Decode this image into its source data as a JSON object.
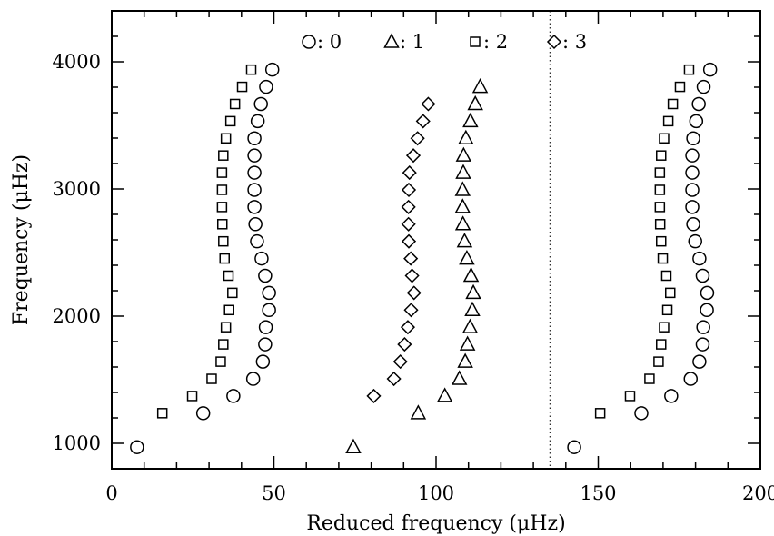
{
  "chart_data": {
    "type": "scatter",
    "title": "",
    "xlabel": "Reduced frequency (μHz)",
    "ylabel": "Frequency (μHz)",
    "xlim": [
      0,
      200
    ],
    "ylim": [
      800,
      4400
    ],
    "xticks": [
      0,
      50,
      100,
      150,
      200
    ],
    "yticks": [
      1000,
      2000,
      3000,
      4000
    ],
    "x_tick_labels": [
      "0",
      "50",
      "100",
      "150",
      "200"
    ],
    "y_tick_labels": [
      "1000",
      "2000",
      "3000",
      "4000"
    ],
    "grid": false,
    "legend_position": "top",
    "reference_line": {
      "x": 135.1,
      "style": "dotted"
    },
    "series": [
      {
        "name": ": 0",
        "marker": "circle",
        "points": [
          {
            "x": 7.8,
            "y": 970
          },
          {
            "x": 28.2,
            "y": 1237
          },
          {
            "x": 37.5,
            "y": 1372
          },
          {
            "x": 43.6,
            "y": 1507
          },
          {
            "x": 46.6,
            "y": 1642
          },
          {
            "x": 47.3,
            "y": 1778
          },
          {
            "x": 47.5,
            "y": 1913
          },
          {
            "x": 48.5,
            "y": 2048
          },
          {
            "x": 48.5,
            "y": 2183
          },
          {
            "x": 47.3,
            "y": 2318
          },
          {
            "x": 46.2,
            "y": 2453
          },
          {
            "x": 44.8,
            "y": 2588
          },
          {
            "x": 44.3,
            "y": 2723
          },
          {
            "x": 44.0,
            "y": 2858
          },
          {
            "x": 44.0,
            "y": 2993
          },
          {
            "x": 44.0,
            "y": 3128
          },
          {
            "x": 44.0,
            "y": 3263
          },
          {
            "x": 44.0,
            "y": 3398
          },
          {
            "x": 45.0,
            "y": 3533
          },
          {
            "x": 46.0,
            "y": 3668
          },
          {
            "x": 47.6,
            "y": 3803
          },
          {
            "x": 49.5,
            "y": 3938
          }
        ]
      },
      {
        "name": ": 1",
        "marker": "triangle",
        "points": [
          {
            "x": 74.5,
            "y": 970
          },
          {
            "x": 94.5,
            "y": 1237
          },
          {
            "x": 102.7,
            "y": 1372
          },
          {
            "x": 107.2,
            "y": 1507
          },
          {
            "x": 109.0,
            "y": 1642
          },
          {
            "x": 109.7,
            "y": 1778
          },
          {
            "x": 110.5,
            "y": 1913
          },
          {
            "x": 111.2,
            "y": 2048
          },
          {
            "x": 111.5,
            "y": 2183
          },
          {
            "x": 110.8,
            "y": 2318
          },
          {
            "x": 109.5,
            "y": 2453
          },
          {
            "x": 108.8,
            "y": 2588
          },
          {
            "x": 108.3,
            "y": 2723
          },
          {
            "x": 108.2,
            "y": 2858
          },
          {
            "x": 108.2,
            "y": 2993
          },
          {
            "x": 108.4,
            "y": 3128
          },
          {
            "x": 108.5,
            "y": 3263
          },
          {
            "x": 109.2,
            "y": 3398
          },
          {
            "x": 110.6,
            "y": 3533
          },
          {
            "x": 112.1,
            "y": 3668
          },
          {
            "x": 113.6,
            "y": 3803
          }
        ]
      },
      {
        "name": ": 2",
        "marker": "square",
        "points": [
          {
            "x": 15.6,
            "y": 1237
          },
          {
            "x": 24.8,
            "y": 1372
          },
          {
            "x": 30.8,
            "y": 1507
          },
          {
            "x": 33.6,
            "y": 1642
          },
          {
            "x": 34.4,
            "y": 1778
          },
          {
            "x": 35.2,
            "y": 1913
          },
          {
            "x": 36.2,
            "y": 2048
          },
          {
            "x": 37.2,
            "y": 2183
          },
          {
            "x": 36.0,
            "y": 2318
          },
          {
            "x": 34.8,
            "y": 2453
          },
          {
            "x": 34.4,
            "y": 2588
          },
          {
            "x": 34.1,
            "y": 2723
          },
          {
            "x": 34.0,
            "y": 2858
          },
          {
            "x": 34.0,
            "y": 2993
          },
          {
            "x": 34.0,
            "y": 3128
          },
          {
            "x": 34.4,
            "y": 3263
          },
          {
            "x": 35.2,
            "y": 3398
          },
          {
            "x": 36.6,
            "y": 3533
          },
          {
            "x": 38.0,
            "y": 3668
          },
          {
            "x": 40.2,
            "y": 3803
          },
          {
            "x": 43.0,
            "y": 3938
          }
        ]
      },
      {
        "name": ": 3",
        "marker": "diamond",
        "points": [
          {
            "x": 80.8,
            "y": 1372
          },
          {
            "x": 87.0,
            "y": 1507
          },
          {
            "x": 89.0,
            "y": 1642
          },
          {
            "x": 90.3,
            "y": 1778
          },
          {
            "x": 91.3,
            "y": 1913
          },
          {
            "x": 92.3,
            "y": 2048
          },
          {
            "x": 93.2,
            "y": 2183
          },
          {
            "x": 92.6,
            "y": 2318
          },
          {
            "x": 92.2,
            "y": 2453
          },
          {
            "x": 91.6,
            "y": 2588
          },
          {
            "x": 91.5,
            "y": 2723
          },
          {
            "x": 91.5,
            "y": 2858
          },
          {
            "x": 91.6,
            "y": 2993
          },
          {
            "x": 91.8,
            "y": 3128
          },
          {
            "x": 93.0,
            "y": 3263
          },
          {
            "x": 94.3,
            "y": 3398
          },
          {
            "x": 96.0,
            "y": 3533
          },
          {
            "x": 97.6,
            "y": 3668
          }
        ]
      },
      {
        "name": "",
        "marker": "circle",
        "points": [
          {
            "x": 142.6,
            "y": 970
          },
          {
            "x": 163.3,
            "y": 1237
          },
          {
            "x": 172.5,
            "y": 1372
          },
          {
            "x": 178.5,
            "y": 1507
          },
          {
            "x": 181.2,
            "y": 1642
          },
          {
            "x": 182.2,
            "y": 1778
          },
          {
            "x": 182.4,
            "y": 1913
          },
          {
            "x": 183.5,
            "y": 2048
          },
          {
            "x": 183.6,
            "y": 2183
          },
          {
            "x": 182.2,
            "y": 2318
          },
          {
            "x": 181.2,
            "y": 2453
          },
          {
            "x": 179.9,
            "y": 2588
          },
          {
            "x": 179.3,
            "y": 2723
          },
          {
            "x": 179.0,
            "y": 2858
          },
          {
            "x": 179.0,
            "y": 2993
          },
          {
            "x": 179.0,
            "y": 3128
          },
          {
            "x": 179.0,
            "y": 3263
          },
          {
            "x": 179.3,
            "y": 3398
          },
          {
            "x": 180.2,
            "y": 3533
          },
          {
            "x": 181.0,
            "y": 3668
          },
          {
            "x": 182.5,
            "y": 3803
          },
          {
            "x": 184.5,
            "y": 3938
          }
        ]
      },
      {
        "name": "",
        "marker": "square",
        "points": [
          {
            "x": 150.6,
            "y": 1237
          },
          {
            "x": 159.8,
            "y": 1372
          },
          {
            "x": 165.8,
            "y": 1507
          },
          {
            "x": 168.6,
            "y": 1642
          },
          {
            "x": 169.4,
            "y": 1778
          },
          {
            "x": 170.3,
            "y": 1913
          },
          {
            "x": 171.3,
            "y": 2048
          },
          {
            "x": 172.2,
            "y": 2183
          },
          {
            "x": 171.0,
            "y": 2318
          },
          {
            "x": 169.9,
            "y": 2453
          },
          {
            "x": 169.4,
            "y": 2588
          },
          {
            "x": 169.1,
            "y": 2723
          },
          {
            "x": 169.0,
            "y": 2858
          },
          {
            "x": 169.0,
            "y": 2993
          },
          {
            "x": 169.0,
            "y": 3128
          },
          {
            "x": 169.4,
            "y": 3263
          },
          {
            "x": 170.3,
            "y": 3398
          },
          {
            "x": 171.6,
            "y": 3533
          },
          {
            "x": 173.0,
            "y": 3668
          },
          {
            "x": 175.2,
            "y": 3803
          },
          {
            "x": 178.0,
            "y": 3938
          }
        ]
      }
    ],
    "legend": [
      {
        "marker": "circle",
        "label": ": 0"
      },
      {
        "marker": "triangle",
        "label": ": 1"
      },
      {
        "marker": "square",
        "label": ": 2"
      },
      {
        "marker": "diamond",
        "label": ": 3"
      }
    ]
  }
}
